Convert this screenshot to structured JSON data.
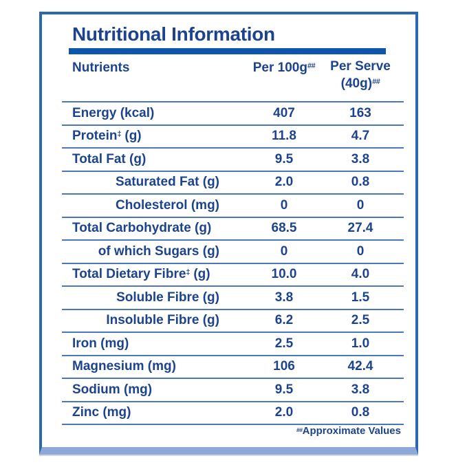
{
  "panel": {
    "title": "Nutritional Information",
    "columns": {
      "nutrients": "Nutrients",
      "per_100g": "Per 100g",
      "per_100g_sup": "##",
      "per_serve_line1": "Per Serve",
      "per_serve_line2": "(40g)",
      "per_serve_sup": "##"
    },
    "rows": [
      {
        "name": "Energy (kcal)",
        "sup": "",
        "unit": "",
        "indent": false,
        "per_100g": "407",
        "per_serve": "163"
      },
      {
        "name": "Protein",
        "sup": "‡",
        "unit": " (g)",
        "indent": false,
        "per_100g": "11.8",
        "per_serve": "4.7"
      },
      {
        "name": "Total Fat (g)",
        "sup": "",
        "unit": "",
        "indent": false,
        "per_100g": "9.5",
        "per_serve": "3.8"
      },
      {
        "name": "Saturated Fat (g)",
        "sup": "",
        "unit": "",
        "indent": true,
        "per_100g": "2.0",
        "per_serve": "0.8"
      },
      {
        "name": "Cholesterol (mg)",
        "sup": "",
        "unit": "",
        "indent": true,
        "per_100g": "0",
        "per_serve": "0"
      },
      {
        "name": "Total Carbohydrate (g)",
        "sup": "",
        "unit": "",
        "indent": false,
        "per_100g": "68.5",
        "per_serve": "27.4"
      },
      {
        "name": "of which Sugars (g)",
        "sup": "",
        "unit": "",
        "indent": true,
        "per_100g": "0",
        "per_serve": "0"
      },
      {
        "name": "Total Dietary Fibre",
        "sup": "‡",
        "unit": " (g)",
        "indent": false,
        "per_100g": "10.0",
        "per_serve": "4.0"
      },
      {
        "name": "Soluble Fibre (g)",
        "sup": "",
        "unit": "",
        "indent": true,
        "per_100g": "3.8",
        "per_serve": "1.5"
      },
      {
        "name": "Insoluble Fibre (g)",
        "sup": "",
        "unit": "",
        "indent": true,
        "per_100g": "6.2",
        "per_serve": "2.5"
      },
      {
        "name": "Iron (mg)",
        "sup": "",
        "unit": "",
        "indent": false,
        "per_100g": "2.5",
        "per_serve": "1.0"
      },
      {
        "name": "Magnesium (mg)",
        "sup": "",
        "unit": "",
        "indent": false,
        "per_100g": "106",
        "per_serve": "42.4"
      },
      {
        "name": "Sodium (mg)",
        "sup": "",
        "unit": "",
        "indent": false,
        "per_100g": "9.5",
        "per_serve": "3.8"
      },
      {
        "name": "Zinc (mg)",
        "sup": "",
        "unit": "",
        "indent": false,
        "per_100g": "2.0",
        "per_serve": "0.8"
      }
    ],
    "footnote": {
      "sup": "##",
      "text": "Approximate Values"
    }
  },
  "colors": {
    "text_navy": "#1c4390",
    "panel_border": "#2c68b2",
    "title_bar": "#0e56ac",
    "row_divider": "#4b76b9",
    "bottom_bar": "#8ea9d8",
    "background": "#ffffff"
  }
}
